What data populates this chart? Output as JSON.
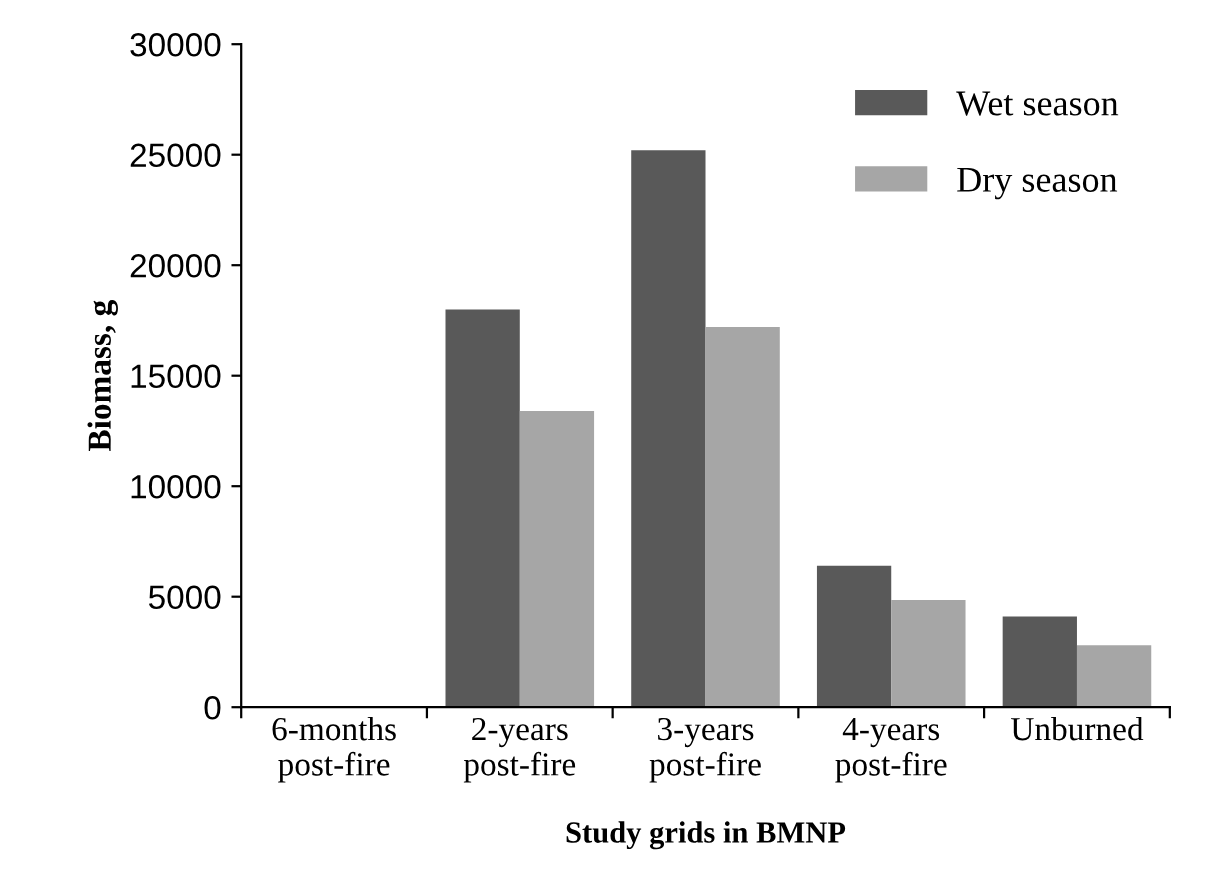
{
  "chart_data": {
    "type": "bar",
    "xlabel": "Study grids in BMNP",
    "ylabel": "Biomass, g",
    "categories": [
      "6-months\npost-fire",
      "2-years\npost-fire",
      "3-years\npost-fire",
      "4-years\npost-fire",
      "Unburned"
    ],
    "series": [
      {
        "name": "Wet season",
        "color": "#595959",
        "values": [
          0,
          18000,
          25200,
          6400,
          4100
        ]
      },
      {
        "name": "Dry season",
        "color": "#a6a6a6",
        "values": [
          0,
          13400,
          17200,
          4850,
          2800
        ]
      }
    ],
    "ylim": [
      0,
      30000
    ],
    "yticks": [
      0,
      5000,
      10000,
      15000,
      20000,
      25000,
      30000
    ],
    "grid": false,
    "legend": "top right"
  }
}
